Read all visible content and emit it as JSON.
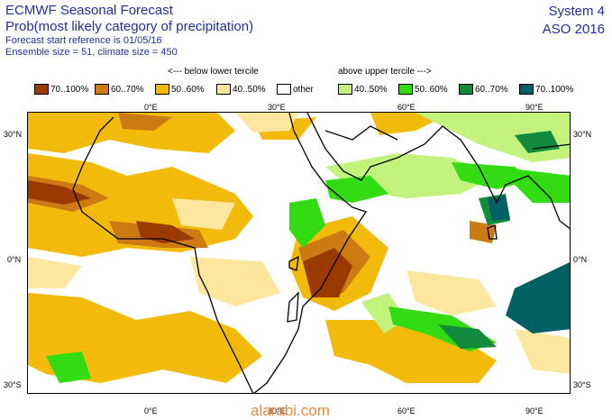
{
  "header": {
    "title_line1": "ECMWF Seasonal Forecast",
    "title_line2": "Prob(most likely category of precipitation)",
    "start_ref": "Forecast start reference is 01/05/16",
    "ensemble": "Ensemble size = 51, climate size = 450",
    "system": "System 4",
    "season": "ASO 2016"
  },
  "legend": {
    "below_label": "<--- below lower tercile",
    "above_label": "above upper tercile --->",
    "items": [
      {
        "label": "70..100%",
        "color": "#9a3a00"
      },
      {
        "label": "60..70%",
        "color": "#cc7a12"
      },
      {
        "label": "50..60%",
        "color": "#f2b800"
      },
      {
        "label": "40..50%",
        "color": "#fde79e"
      },
      {
        "label": "other",
        "color": "#ffffff"
      },
      {
        "label": "40..50%",
        "color": "#c3f37c"
      },
      {
        "label": "50..60%",
        "color": "#32db12"
      },
      {
        "label": "60..70%",
        "color": "#128c3c"
      },
      {
        "label": "70..100%",
        "color": "#006064"
      }
    ]
  },
  "axes": {
    "lon_top": [
      "0°E",
      "30°E",
      "60°E",
      "90°E"
    ],
    "lon_bottom": [
      "0°E",
      "30°E",
      "60°E",
      "90°E"
    ],
    "lat_left": [
      "30°N",
      "0°N",
      "30°S"
    ],
    "lat_right": [
      "30°N",
      "0°N",
      "30°S"
    ]
  },
  "watermark": "alarabi.com"
}
